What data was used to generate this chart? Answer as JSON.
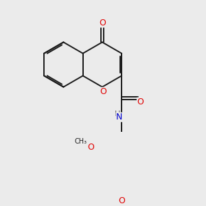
{
  "bg_color": "#ebebeb",
  "bond_color": "#1a1a1a",
  "bond_width": 1.4,
  "atom_colors": {
    "O": "#e00000",
    "N": "#0000cc",
    "C": "#1a1a1a",
    "H": "#606060"
  },
  "font_size": 8.5,
  "figsize": [
    3.0,
    3.0
  ],
  "dpi": 100
}
